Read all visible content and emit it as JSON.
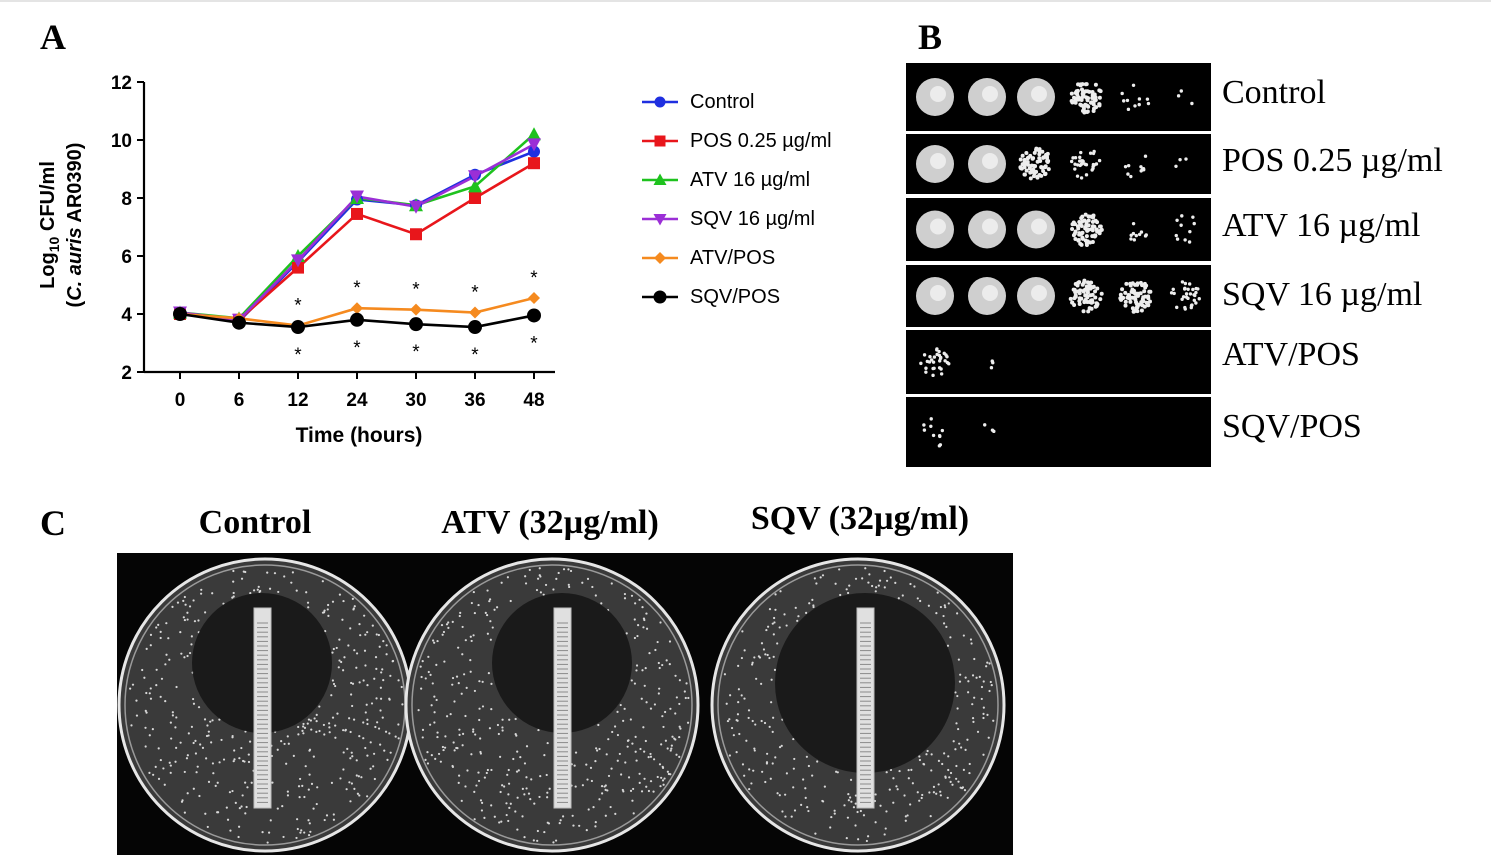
{
  "panels": {
    "a": "A",
    "b": "B",
    "c": "C"
  },
  "chart_data": {
    "type": "line",
    "xlabel": "Time (hours)",
    "ylabel_parts": {
      "pre": "Log",
      "sub": "10",
      "post": " CFU/ml"
    },
    "ylabel_line2_parts": {
      "open": "(",
      "italic": "C. auris",
      "close": " AR0390)"
    },
    "x": [
      0,
      6,
      12,
      24,
      30,
      36,
      48
    ],
    "x_tick_labels": [
      "0",
      "6",
      "12",
      "24",
      "30",
      "36",
      "48"
    ],
    "ylim": [
      2,
      12
    ],
    "y_ticks": [
      2,
      4,
      6,
      8,
      10,
      12
    ],
    "x_scale": "categorical-evenly-spaced",
    "grid": false,
    "legend_position": "right",
    "series": [
      {
        "name": "Control",
        "color": "#1f2fe0",
        "marker": "circle",
        "values": [
          4.0,
          3.75,
          5.8,
          7.95,
          7.75,
          8.8,
          9.6
        ]
      },
      {
        "name": "POS 0.25 µg/ml",
        "color": "#e8161b",
        "marker": "square",
        "values": [
          4.0,
          3.8,
          5.6,
          7.45,
          6.75,
          8.0,
          9.2
        ]
      },
      {
        "name": "ATV 16 µg/ml",
        "color": "#1ec21e",
        "marker": "triangle-up",
        "values": [
          4.05,
          3.85,
          6.0,
          8.0,
          7.75,
          8.4,
          10.2
        ]
      },
      {
        "name": "SQV 16 µg/ml",
        "color": "#9b2fd6",
        "marker": "triangle-down",
        "values": [
          4.05,
          3.8,
          5.85,
          8.05,
          7.7,
          8.75,
          9.85
        ]
      },
      {
        "name": "ATV/POS",
        "color": "#f58a1f",
        "marker": "diamond",
        "values": [
          4.0,
          3.85,
          3.6,
          4.2,
          4.15,
          4.05,
          4.55
        ]
      },
      {
        "name": "SQV/POS",
        "color": "#000000",
        "marker": "circle",
        "values": [
          4.0,
          3.7,
          3.55,
          3.8,
          3.65,
          3.55,
          3.95
        ]
      }
    ],
    "significance_marks": [
      {
        "x": 12,
        "above": "*",
        "below": "*"
      },
      {
        "x": 24,
        "above": "*",
        "below": "*"
      },
      {
        "x": 30,
        "above": "*",
        "below": "*"
      },
      {
        "x": 36,
        "above": "*",
        "below": "*"
      },
      {
        "x": 48,
        "above": "*",
        "below": "*"
      }
    ]
  },
  "spot_assay": {
    "rows": [
      {
        "label": "Control",
        "colonies": "heavy-heavy-heavy-dense-sparse-trace"
      },
      {
        "label": "POS 0.25 µg/ml",
        "colonies": "heavy-heavy-dense-medium-sparse-trace"
      },
      {
        "label": "ATV 16 µg/ml",
        "colonies": "heavy-heavy-heavy-dense-sparse-sparse"
      },
      {
        "label": "SQV 16 µg/ml",
        "colonies": "heavy-heavy-heavy-dense-dense-medium"
      },
      {
        "label": "ATV/POS",
        "colonies": "medium-trace"
      },
      {
        "label": "SQV/POS",
        "colonies": "sparse-trace"
      }
    ]
  },
  "etest_plates": {
    "titles": [
      "Control",
      "ATV (32µg/ml)",
      "SQV (32µg/ml)"
    ]
  }
}
